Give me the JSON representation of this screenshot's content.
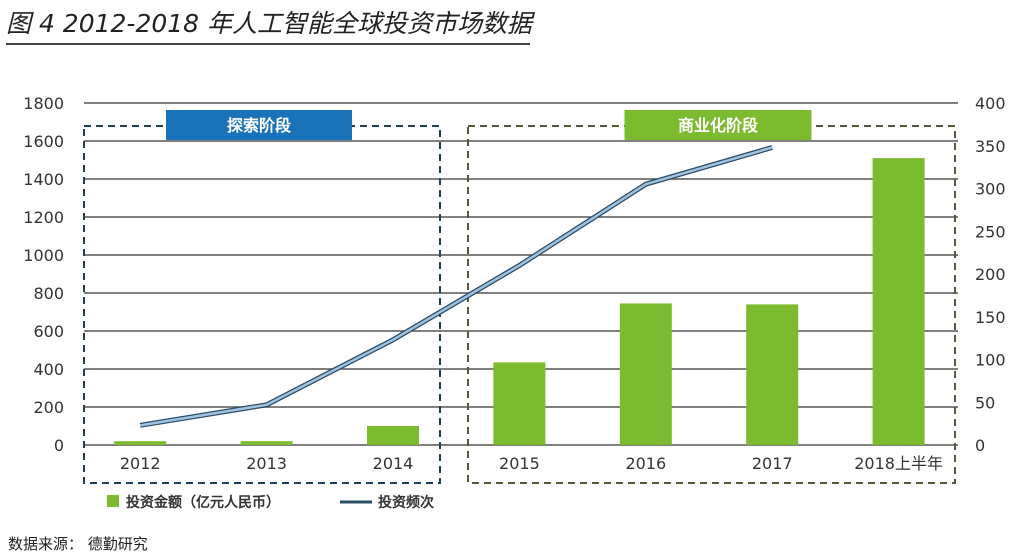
{
  "title": "图 4 2012-2018 年人工智能全球投资市场数据",
  "source": "数据来源： 德勤研究",
  "chart_data": {
    "type": "bar+line",
    "categories": [
      "2012",
      "2013",
      "2014",
      "2015",
      "2016",
      "2017",
      "2018上半年"
    ],
    "series": [
      {
        "name": "投资金额（亿元人民币）",
        "type": "bar",
        "axis": "left",
        "color": "#7cba2f",
        "values": [
          20,
          20,
          100,
          435,
          745,
          740,
          1510
        ]
      },
      {
        "name": "投资频次",
        "type": "line",
        "axis": "right",
        "color": "#9fc3e0",
        "values": [
          23,
          47,
          123,
          210,
          305,
          348,
          null
        ]
      }
    ],
    "left_axis": {
      "ylim": [
        0,
        1800
      ],
      "ticks": [
        0,
        200,
        400,
        600,
        800,
        1000,
        1200,
        1400,
        1600,
        1800
      ]
    },
    "right_axis": {
      "ylim": [
        0,
        400
      ],
      "ticks": [
        0,
        50,
        100,
        150,
        200,
        250,
        300,
        350,
        400
      ]
    },
    "grid": true,
    "legend": "bottom",
    "phases": [
      {
        "label": "探索阶段",
        "from": "2012",
        "to": "2014",
        "color": "#1a73b8"
      },
      {
        "label": "商业化阶段",
        "from": "2015",
        "to": "2018上半年",
        "color": "#7cba2f"
      }
    ]
  }
}
